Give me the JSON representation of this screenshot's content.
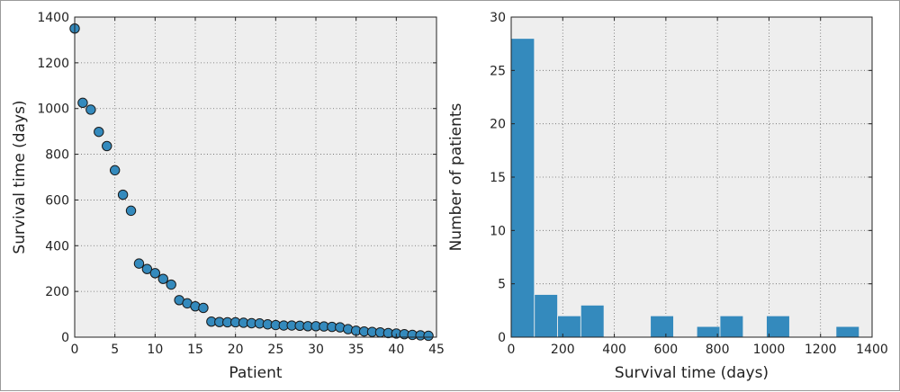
{
  "chart_data": [
    {
      "type": "scatter",
      "title": "",
      "xlabel": "Patient",
      "ylabel": "Survival time (days)",
      "xlim": [
        0,
        45
      ],
      "ylim": [
        0,
        1400
      ],
      "xticks": [
        0,
        5,
        10,
        15,
        20,
        25,
        30,
        35,
        40,
        45
      ],
      "yticks": [
        0,
        200,
        400,
        600,
        800,
        1000,
        1200,
        1400
      ],
      "grid": true,
      "marker_color": "#348abd",
      "x": [
        0,
        1,
        2,
        3,
        4,
        5,
        6,
        7,
        8,
        9,
        10,
        11,
        12,
        13,
        14,
        15,
        16,
        17,
        18,
        19,
        20,
        21,
        22,
        23,
        24,
        25,
        26,
        27,
        28,
        29,
        30,
        31,
        32,
        33,
        34,
        35,
        36,
        37,
        38,
        39,
        40,
        41,
        42,
        43,
        44
      ],
      "y": [
        1350,
        1025,
        995,
        898,
        836,
        730,
        623,
        553,
        322,
        298,
        280,
        255,
        230,
        162,
        148,
        135,
        128,
        68,
        66,
        65,
        65,
        63,
        61,
        60,
        56,
        53,
        51,
        51,
        50,
        48,
        48,
        47,
        45,
        43,
        35,
        28,
        25,
        23,
        21,
        18,
        16,
        13,
        10,
        8,
        6
      ]
    },
    {
      "type": "bar",
      "title": "",
      "xlabel": "Survival time (days)",
      "ylabel": "Number of patients",
      "xlim": [
        0,
        1400
      ],
      "ylim": [
        0,
        30
      ],
      "xticks": [
        0,
        200,
        400,
        600,
        800,
        1000,
        1200,
        1400
      ],
      "yticks": [
        0,
        5,
        10,
        15,
        20,
        25,
        30
      ],
      "grid": true,
      "bar_color": "#348abd",
      "bin_edges": [
        0,
        90,
        180,
        270,
        360,
        450,
        540,
        630,
        720,
        810,
        900,
        990,
        1080,
        1170,
        1260,
        1350
      ],
      "values": [
        28,
        4,
        2,
        3,
        0,
        0,
        2,
        0,
        1,
        2,
        0,
        2,
        0,
        0,
        1
      ]
    }
  ]
}
